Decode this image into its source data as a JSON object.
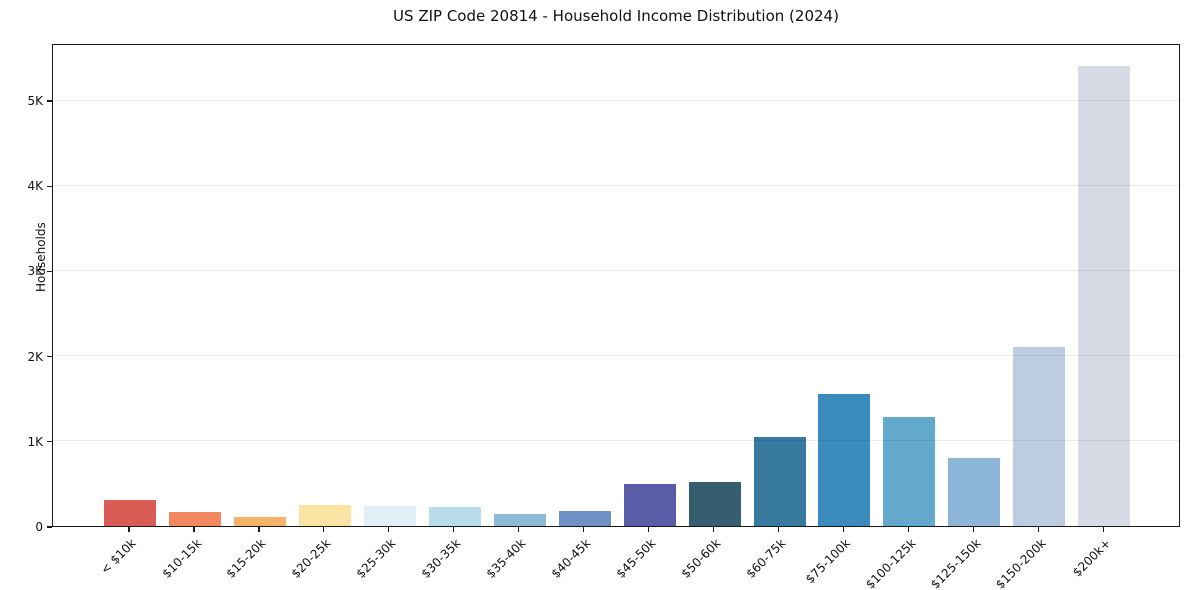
{
  "chart_data": {
    "type": "bar",
    "title": "US ZIP Code 20814 - Household Income Distribution (2024)",
    "xlabel": "",
    "ylabel": "Households",
    "ylim": [
      0,
      5670
    ],
    "grid": "horizontal-light-gray",
    "legend": "none",
    "categories": [
      "< $10k",
      "$10-15k",
      "$15-20k",
      "$20-25k",
      "$25-30k",
      "$30-35k",
      "$35-40k",
      "$40-45k",
      "$45-50k",
      "$50-60k",
      "$60-75k",
      "$75-100k",
      "$100-125k",
      "$125-150k",
      "$150-200k",
      "$200k+"
    ],
    "values": [
      310,
      160,
      100,
      250,
      240,
      220,
      140,
      180,
      490,
      520,
      1050,
      1550,
      1280,
      800,
      2100,
      5400
    ],
    "bar_colors": [
      "#d95d55",
      "#f0875f",
      "#f6b36a",
      "#fbe3a3",
      "#e1f0f6",
      "#b8dcec",
      "#8db8d8",
      "#6c92c6",
      "#5a5ca8",
      "#355f70",
      "#38799f",
      "#3a8cbf",
      "#62a9cc",
      "#8cb5d7",
      "#bccde1",
      "#d8dae6"
    ],
    "ytick_values": [
      0,
      1000,
      2000,
      3000,
      4000,
      5000
    ],
    "ytick_labels": [
      "0",
      "1K",
      "2K",
      "3K",
      "4K",
      "5K"
    ],
    "gridline_values": [
      1000,
      2000,
      3000,
      4000,
      5000
    ],
    "axis_color": "#1a1a1a",
    "background_color": "#ffffff"
  }
}
